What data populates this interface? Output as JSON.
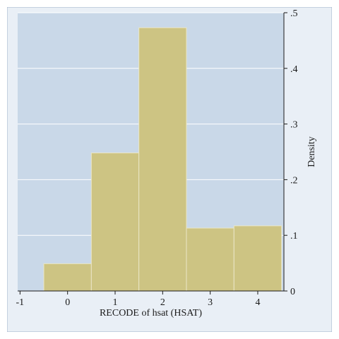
{
  "chart_data": {
    "type": "bar",
    "subtype": "histogram",
    "bins": [
      {
        "start": -0.5,
        "end": 0.5,
        "density": 0.049
      },
      {
        "start": 0.5,
        "end": 1.5,
        "density": 0.248
      },
      {
        "start": 1.5,
        "end": 2.5,
        "density": 0.473
      },
      {
        "start": 2.5,
        "end": 3.5,
        "density": 0.113
      },
      {
        "start": 3.5,
        "end": 4.5,
        "density": 0.117
      }
    ],
    "xlabel": "RECODE of hsat (HSAT)",
    "ylabel": "Density",
    "xlim": [
      -1.05,
      4.55
    ],
    "ylim": [
      0,
      0.5
    ],
    "x_ticks": [
      -1,
      0,
      1,
      2,
      3,
      4
    ],
    "x_tick_labels": [
      "-1",
      "0",
      "1",
      "2",
      "3",
      "4"
    ],
    "y_ticks": [
      0,
      0.1,
      0.2,
      0.3,
      0.4,
      0.5
    ],
    "y_tick_labels": [
      "0",
      ".1",
      ".2",
      ".3",
      ".4",
      ".5"
    ],
    "y_axis_side": "right",
    "grid": "horizontal",
    "legend": "none",
    "colors": {
      "outer_background": "#e9eff6",
      "plot_background": "#c9d8e8",
      "bar_fill": "#cdc483",
      "bar_edge": "#eae6c6",
      "gridline": "#ffffff",
      "axis": "#1a1a1a",
      "frame": "#9fb2c8"
    }
  }
}
